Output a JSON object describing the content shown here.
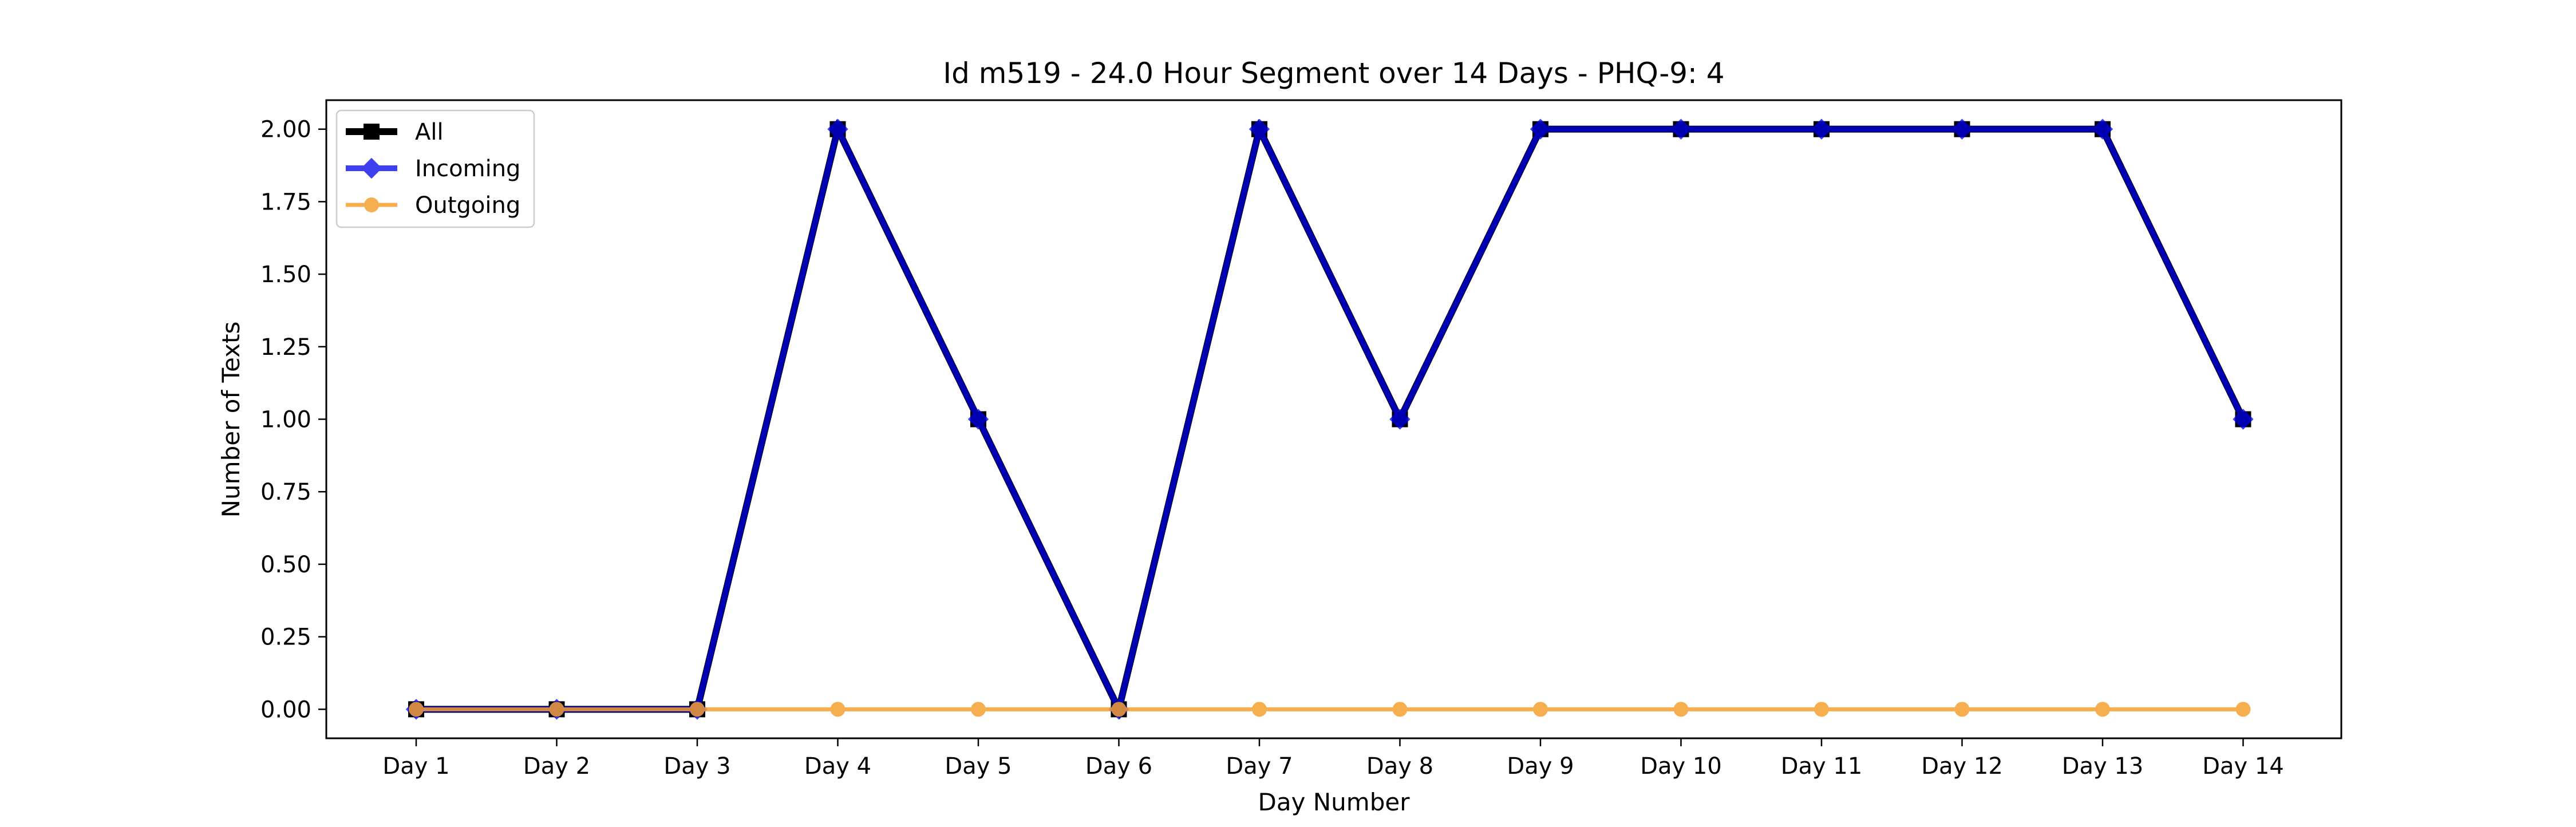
{
  "chart_data": {
    "type": "line",
    "title": "Id m519 - 24.0 Hour Segment over 14 Days - PHQ-9: 4",
    "xlabel": "Day Number",
    "ylabel": "Number of Texts",
    "categories": [
      "Day 1",
      "Day 2",
      "Day 3",
      "Day 4",
      "Day 5",
      "Day 6",
      "Day 7",
      "Day 8",
      "Day 9",
      "Day 10",
      "Day 11",
      "Day 12",
      "Day 13",
      "Day 14"
    ],
    "ylim": [
      -0.1,
      2.1
    ],
    "yticks": [
      "0.00",
      "0.25",
      "0.50",
      "0.75",
      "1.00",
      "1.25",
      "1.50",
      "1.75",
      "2.00"
    ],
    "grid": false,
    "legend_position": "top-left",
    "series": [
      {
        "name": "All",
        "color": "#000000",
        "marker": "square",
        "values": [
          0,
          0,
          0,
          2,
          1,
          0,
          2,
          1,
          2,
          2,
          2,
          2,
          2,
          1
        ]
      },
      {
        "name": "Incoming",
        "color": "#0000ee",
        "marker": "diamond",
        "values": [
          0,
          0,
          0,
          2,
          1,
          0,
          2,
          1,
          2,
          2,
          2,
          2,
          2,
          1
        ]
      },
      {
        "name": "Outgoing",
        "color": "#f5a030",
        "marker": "circle",
        "values": [
          0,
          0,
          0,
          0,
          0,
          0,
          0,
          0,
          0,
          0,
          0,
          0,
          0,
          0
        ]
      }
    ]
  }
}
